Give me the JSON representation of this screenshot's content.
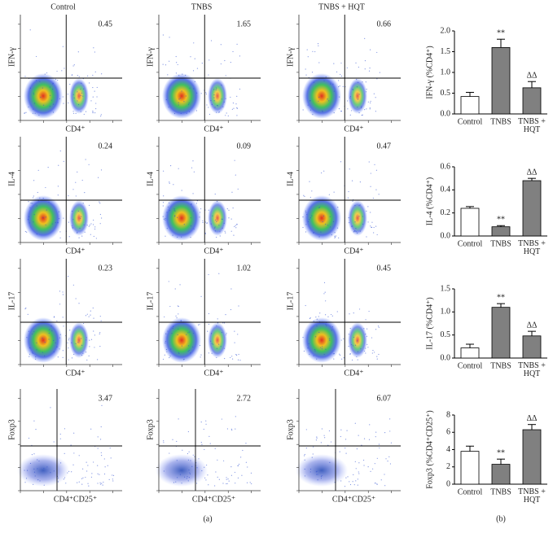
{
  "panel_a": {
    "label": "(a)",
    "columns": [
      "Control",
      "TNBS",
      "TNBS + HQT"
    ],
    "rows": [
      {
        "y_label": "IFN-γ",
        "x_label": "CD4⁺",
        "quadrant_values": [
          "0.45",
          "1.65",
          "0.66"
        ]
      },
      {
        "y_label": "IL-4",
        "x_label": "CD4⁺",
        "quadrant_values": [
          "0.24",
          "0.09",
          "0.47"
        ]
      },
      {
        "y_label": "IL-17",
        "x_label": "CD4⁺",
        "quadrant_values": [
          "0.23",
          "1.02",
          "0.45"
        ]
      },
      {
        "y_label": "Foxp3",
        "x_label": "CD4⁺CD25⁺",
        "quadrant_values": [
          "3.47",
          "2.72",
          "6.07"
        ]
      }
    ]
  },
  "panel_b": {
    "label": "(b)"
  },
  "chart_data": [
    {
      "type": "bar",
      "y_label": "IFN-γ (%CD4⁺)",
      "categories": [
        "Control",
        "TNBS",
        "TNBS + HQT"
      ],
      "values": [
        0.42,
        1.6,
        0.63
      ],
      "errors": [
        0.1,
        0.2,
        0.15
      ],
      "colors": [
        "#ffffff",
        "#808080",
        "#808080"
      ],
      "annotations": [
        null,
        "**",
        "ΔΔ"
      ],
      "ylim": [
        0,
        2
      ],
      "yticks": [
        {
          "value": 0,
          "label": "0.0"
        },
        0.5,
        {
          "value": 1,
          "label": "1.0"
        },
        1.5,
        {
          "value": 2,
          "label": "2.0"
        }
      ]
    },
    {
      "type": "bar",
      "y_label": "IL-4 (%CD4⁺)",
      "categories": [
        "Control",
        "TNBS",
        "TNBS + HQT"
      ],
      "values": [
        0.24,
        0.08,
        0.48
      ],
      "errors": [
        0.015,
        0.01,
        0.02
      ],
      "colors": [
        "#ffffff",
        "#808080",
        "#808080"
      ],
      "annotations": [
        null,
        "**",
        "ΔΔ"
      ],
      "ylim": [
        0,
        0.6
      ],
      "yticks": [
        {
          "value": 0,
          "label": "0.0"
        },
        0.2,
        0.4,
        0.6
      ]
    },
    {
      "type": "bar",
      "y_label": "IL-17 (%CD4⁺)",
      "categories": [
        "Control",
        "TNBS",
        "TNBS + HQT"
      ],
      "values": [
        0.22,
        1.1,
        0.48
      ],
      "errors": [
        0.08,
        0.08,
        0.1
      ],
      "colors": [
        "#ffffff",
        "#808080",
        "#808080"
      ],
      "annotations": [
        null,
        "**",
        "ΔΔ"
      ],
      "ylim": [
        0,
        1.5
      ],
      "yticks": [
        {
          "value": 0,
          "label": "0.0"
        },
        0.5,
        {
          "value": 1,
          "label": "1.0"
        },
        1.5
      ]
    },
    {
      "type": "bar",
      "y_label": "Foxp3 (%CD4⁺CD25⁺)",
      "categories": [
        "Control",
        "TNBS",
        "TNBS + HQT"
      ],
      "values": [
        3.8,
        2.3,
        6.3
      ],
      "errors": [
        0.6,
        0.6,
        0.6
      ],
      "colors": [
        "#ffffff",
        "#808080",
        "#808080"
      ],
      "annotations": [
        null,
        "**",
        "ΔΔ"
      ],
      "ylim": [
        0,
        8
      ],
      "yticks": [
        0,
        2,
        4,
        6,
        8
      ]
    }
  ]
}
